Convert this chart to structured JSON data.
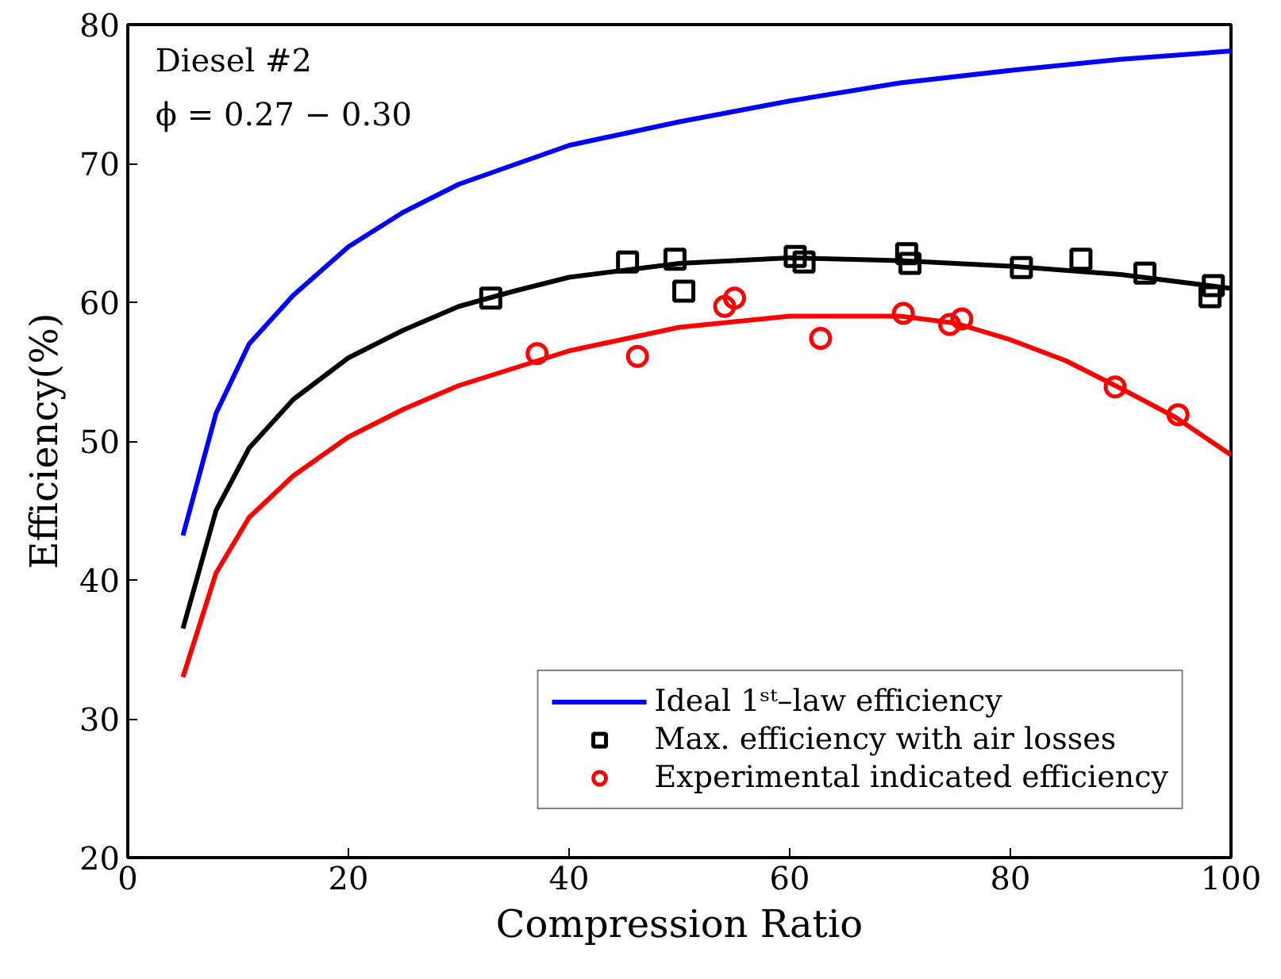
{
  "chart_data": {
    "type": "line",
    "xlabel": "Compression Ratio",
    "ylabel": "Efficiency(%)",
    "annotations": [
      "Diesel #2",
      "ϕ = 0.27 − 0.30"
    ],
    "xlim": [
      0,
      100
    ],
    "ylim": [
      20,
      80
    ],
    "xticks": [
      0,
      20,
      40,
      60,
      80,
      100
    ],
    "yticks": [
      20,
      30,
      40,
      50,
      60,
      70,
      80
    ],
    "grid": false,
    "legend": "bottom right",
    "series": [
      {
        "name": "Ideal 1ˢᵗ–law efficiency",
        "color": "#0000ff",
        "x": [
          5,
          8,
          11,
          15,
          20,
          25,
          30,
          40,
          50,
          60,
          70,
          80,
          90,
          100
        ],
        "values": [
          43.2,
          52,
          57,
          60.5,
          64,
          66.5,
          68.5,
          71.3,
          73,
          74.5,
          75.8,
          76.7,
          77.5,
          78.1
        ]
      },
      {
        "color": "#000000",
        "x": [
          5,
          8,
          11,
          15,
          20,
          25,
          30,
          35,
          40,
          50,
          60,
          70,
          80,
          90,
          100
        ],
        "values": [
          36.5,
          45,
          49.5,
          53,
          56,
          58,
          59.7,
          60.8,
          61.8,
          62.8,
          63.2,
          63.0,
          62.6,
          62.0,
          61.0
        ]
      },
      {
        "color": "#ff0000",
        "x": [
          5,
          8,
          11,
          15,
          20,
          25,
          30,
          40,
          50,
          60,
          70,
          75,
          80,
          85,
          90,
          95,
          100
        ],
        "values": [
          33,
          40.5,
          44.5,
          47.5,
          50.3,
          52.3,
          54,
          56.5,
          58.2,
          59,
          59,
          58.5,
          57.3,
          55.8,
          53.8,
          51.7,
          49
        ]
      },
      {
        "name": "Max. efficiency with air losses",
        "type": "scatter",
        "marker": "square",
        "color": "#000000",
        "x": [
          32.9,
          45.3,
          49.6,
          50.4,
          60.5,
          61.3,
          70.6,
          70.9,
          81.0,
          86.4,
          92.2,
          98.4,
          98.1
        ],
        "values": [
          60.3,
          62.9,
          63.1,
          60.8,
          63.3,
          62.9,
          63.5,
          62.8,
          62.5,
          63.1,
          62.1,
          61.2,
          60.4
        ]
      },
      {
        "name": "Experimental indicated efficiency",
        "type": "scatter",
        "marker": "circle",
        "color": "#ff0000",
        "x": [
          37.1,
          46.2,
          54.1,
          55.0,
          62.8,
          70.3,
          74.5,
          75.6,
          89.5,
          95.2
        ],
        "values": [
          56.3,
          56.1,
          59.7,
          60.3,
          57.4,
          59.2,
          58.4,
          58.8,
          53.9,
          51.9
        ]
      }
    ]
  }
}
